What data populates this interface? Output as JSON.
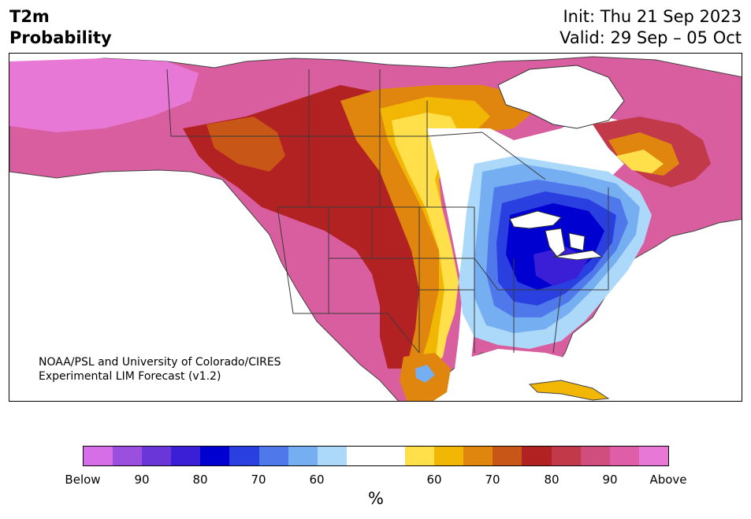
{
  "header": {
    "title_line1": "T2m",
    "title_line2": "Probability",
    "init": "Init: Thu 21 Sep 2023",
    "valid": "Valid: 29 Sep – 05 Oct"
  },
  "map": {
    "credit_line1": "NOAA/PSL and University of Colorado/CIRES",
    "credit_line2": "Experimental LIM Forecast (v1.2)"
  },
  "legend": {
    "colors": [
      "#d66ee8",
      "#9b4fde",
      "#6a36d8",
      "#3b1fd6",
      "#0000d0",
      "#2a3fe0",
      "#4f78ea",
      "#76aef2",
      "#acd9fa",
      "#ffffff",
      "#ffe04a",
      "#f2b705",
      "#e0860e",
      "#c85616",
      "#b22222",
      "#c23a4a",
      "#d04e7e",
      "#de5ea8",
      "#e878d6"
    ],
    "tick_labels": [
      "Below",
      "90",
      "80",
      "70",
      "60",
      "60",
      "70",
      "80",
      "90",
      "Above"
    ],
    "unit_label": "%"
  }
}
